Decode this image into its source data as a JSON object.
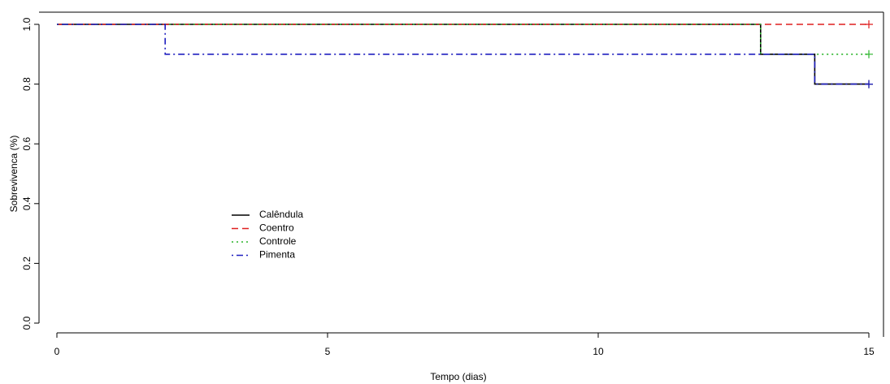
{
  "chart_data": {
    "type": "step",
    "xlabel": "Tempo (dias)",
    "ylabel": "Sobrevivenca (%)",
    "xlim": [
      0,
      15
    ],
    "ylim": [
      0,
      1
    ],
    "xticks": [
      0,
      5,
      10,
      15
    ],
    "yticks": [
      {
        "value": 0,
        "label": "0.0"
      },
      {
        "value": 0.2,
        "label": "0.2"
      },
      {
        "value": 0.4,
        "label": "0.4"
      },
      {
        "value": 0.6,
        "label": "0.6"
      },
      {
        "value": 0.8,
        "label": "0.8"
      },
      {
        "value": 1,
        "label": "1.0"
      }
    ],
    "series": [
      {
        "name": "Calêndula",
        "color": "#000000",
        "dash": "solid",
        "x": [
          0,
          13,
          14,
          15
        ],
        "values": [
          1,
          0.9,
          0.8,
          0.8
        ]
      },
      {
        "name": "Coentro",
        "color": "#df1f1f",
        "dash": "dashed",
        "x": [
          0,
          15
        ],
        "values": [
          1,
          1
        ]
      },
      {
        "name": "Controle",
        "color": "#28b428",
        "dash": "dotted",
        "x": [
          0,
          13,
          15
        ],
        "values": [
          1,
          0.9,
          0.9
        ]
      },
      {
        "name": "Pimenta",
        "color": "#1f1fbf",
        "dash": "dotdash",
        "x": [
          0,
          2,
          14,
          15
        ],
        "values": [
          1,
          0.9,
          0.8,
          0.8
        ]
      }
    ]
  }
}
